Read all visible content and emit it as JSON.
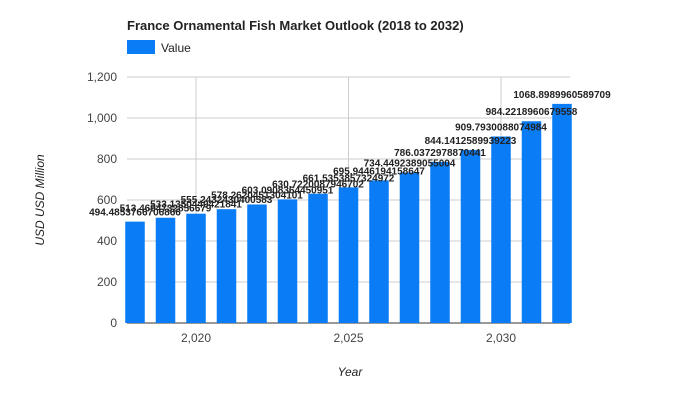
{
  "chart_data": {
    "type": "bar",
    "title": "France Ornamental Fish Market Outlook (2018 to 2032)",
    "xlabel": "Year",
    "ylabel": "USD USD Million",
    "legend": {
      "position": "top-left",
      "entries": [
        "Value"
      ]
    },
    "color": "#0a7cf5",
    "grid": true,
    "ylim": [
      0,
      1200
    ],
    "y_ticks": [
      "0",
      "200",
      "400",
      "600",
      "800",
      "1,000",
      "1,200"
    ],
    "x_ticks": [
      {
        "value": 2020,
        "label": "2,020"
      },
      {
        "value": 2025,
        "label": "2,025"
      },
      {
        "value": 2030,
        "label": "2,030"
      }
    ],
    "series": [
      {
        "name": "Value",
        "x": [
          2018,
          2019,
          2020,
          2021,
          2022,
          2023,
          2024,
          2025,
          2026,
          2027,
          2028,
          2029,
          2030,
          2031,
          2032
        ],
        "values": [
          494.4853766706866,
          513.4694732856678,
          533.1350449421841,
          555.2432430400582,
          578.2620451304101,
          603.0908364450951,
          630.7220087946702,
          661.5353857324972,
          695.9446194158647,
          734.4492389055004,
          786.0372978870441,
          844.1412589939223,
          909.7930088074984,
          984.2218960679558,
          1068.8989960589709
        ],
        "labels": [
          "494.4853766706866",
          "513.4694732856679",
          "533.1350449421841",
          "555.2432430400583",
          "578.2620451304101",
          "603.0908364450951",
          "630.7220087946702",
          "661.5353857324972",
          "695.9446194158647",
          "734.4492389055004",
          "786.0372978870441",
          "844.1412589939223",
          "909.7930088074984",
          "984.2218960679558",
          "1068.8989960589709"
        ]
      }
    ]
  }
}
